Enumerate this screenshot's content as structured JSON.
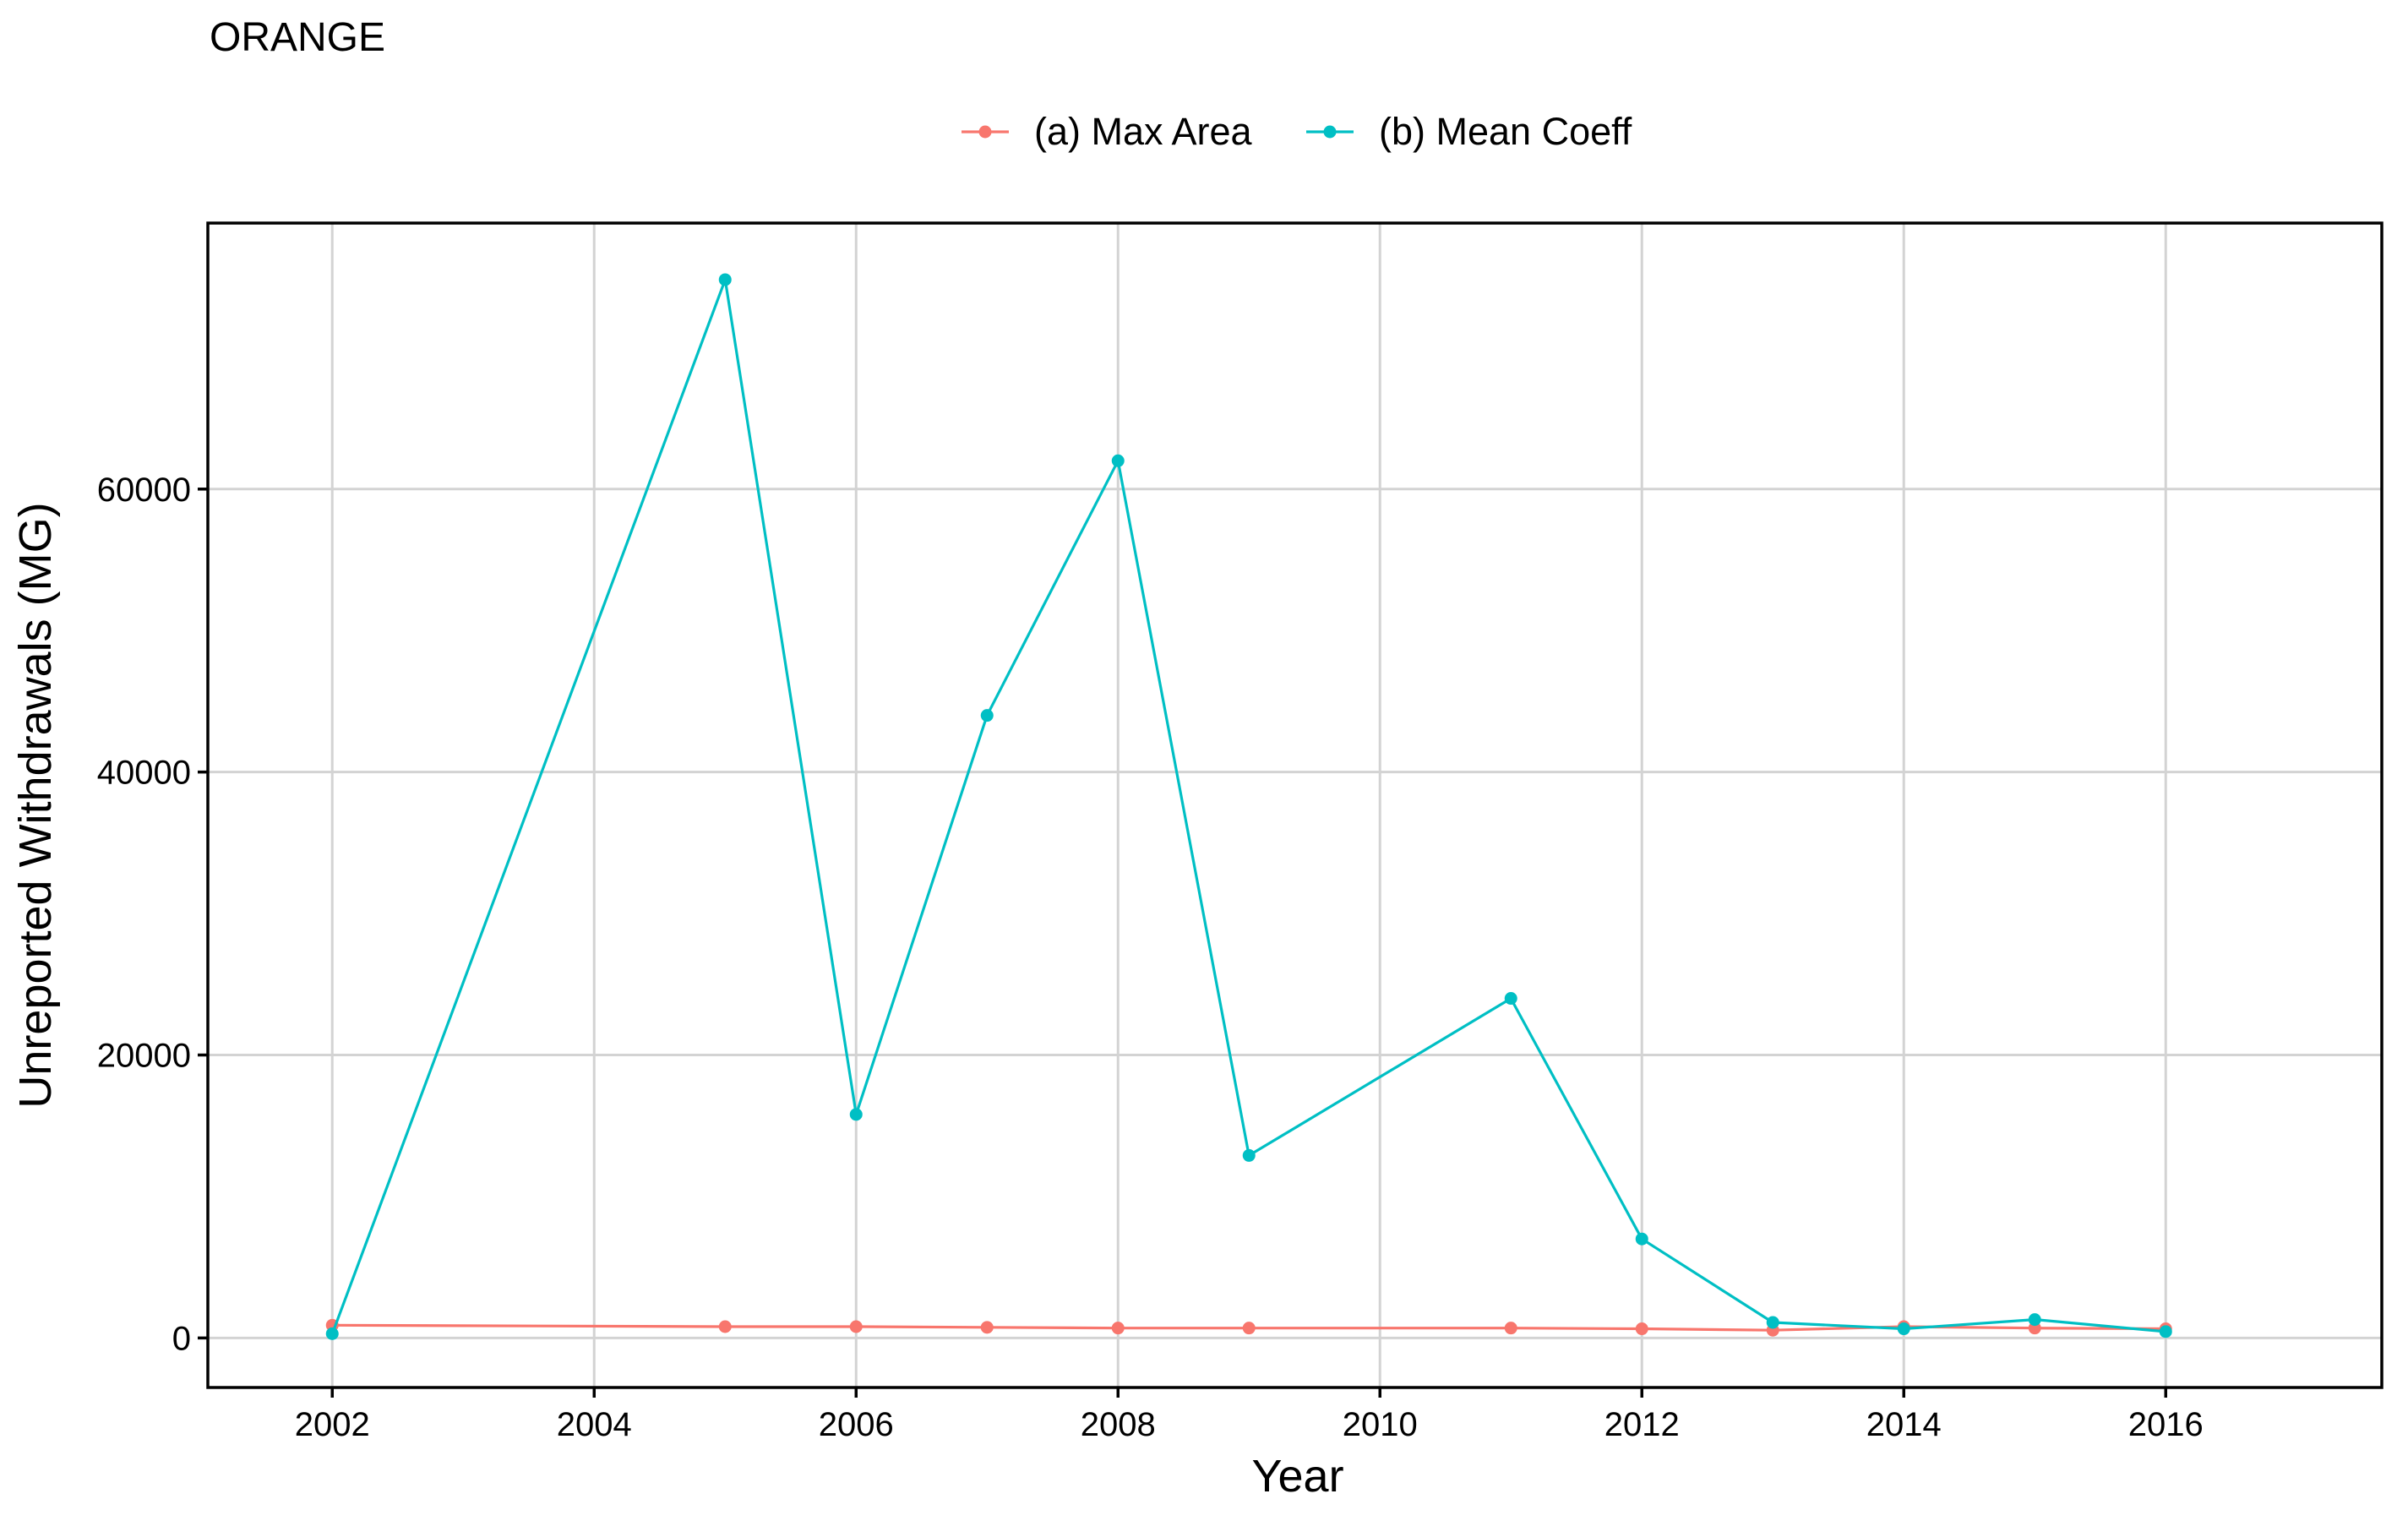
{
  "chart_data": {
    "type": "line",
    "title": "ORANGE",
    "xlabel": "Year",
    "ylabel": "Unreported Withdrawals (MG)",
    "xlim": [
      2001.05,
      2017.65
    ],
    "ylim": [
      -3500,
      78800
    ],
    "xticks": [
      2002,
      2004,
      2006,
      2008,
      2010,
      2012,
      2014,
      2016
    ],
    "yticks": [
      0,
      20000,
      40000,
      60000
    ],
    "grid": true,
    "legend_position": "top",
    "series": [
      {
        "name": "(a) Max Area",
        "color": "#F8766D",
        "points": [
          {
            "x": 2002.0,
            "y": 900
          },
          {
            "x": 2005.0,
            "y": 800
          },
          {
            "x": 2006.0,
            "y": 800
          },
          {
            "x": 2007.0,
            "y": 750
          },
          {
            "x": 2008.0,
            "y": 700
          },
          {
            "x": 2009.0,
            "y": 700
          },
          {
            "x": 2011.0,
            "y": 700
          },
          {
            "x": 2012.0,
            "y": 650
          },
          {
            "x": 2013.0,
            "y": 550
          },
          {
            "x": 2014.0,
            "y": 800
          },
          {
            "x": 2015.0,
            "y": 700
          },
          {
            "x": 2016.0,
            "y": 650
          }
        ]
      },
      {
        "name": "(b) Mean Coeff",
        "color": "#00BFC4",
        "points": [
          {
            "x": 2002.0,
            "y": 300
          },
          {
            "x": 2005.0,
            "y": 74800
          },
          {
            "x": 2006.0,
            "y": 15800
          },
          {
            "x": 2007.0,
            "y": 44000
          },
          {
            "x": 2008.0,
            "y": 62000
          },
          {
            "x": 2009.0,
            "y": 12900
          },
          {
            "x": 2011.0,
            "y": 24000
          },
          {
            "x": 2012.0,
            "y": 7000
          },
          {
            "x": 2013.0,
            "y": 1100
          },
          {
            "x": 2014.0,
            "y": 650
          },
          {
            "x": 2015.0,
            "y": 1300
          },
          {
            "x": 2016.0,
            "y": 450
          }
        ]
      }
    ]
  }
}
